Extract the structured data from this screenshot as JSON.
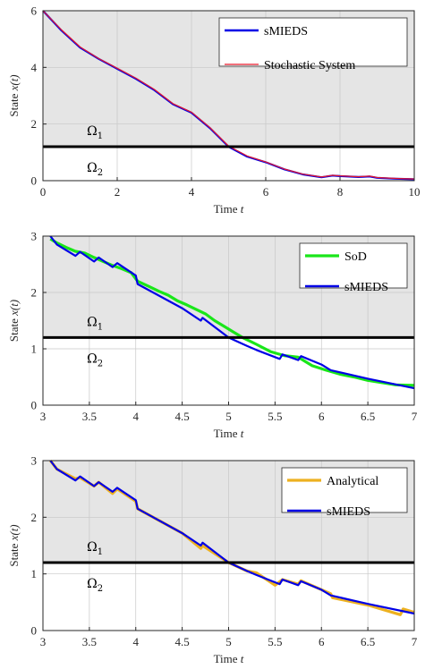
{
  "colors": {
    "smieds": "#0000e6",
    "stochastic": "#e6192b",
    "sod": "#19e619",
    "analytical": "#edb120",
    "threshold": "#000000",
    "region_upper": "#e5e5e5",
    "grid": "#c8c8c8"
  },
  "chart_data": [
    {
      "type": "line",
      "xlabel": "Time t",
      "ylabel": "State x(t)",
      "xlim": [
        0,
        10
      ],
      "ylim": [
        0,
        6
      ],
      "xticks": [
        "0",
        "2",
        "4",
        "6",
        "8",
        "10"
      ],
      "yticks": [
        "0",
        "2",
        "4",
        "6"
      ],
      "grid": true,
      "legend_position": "top-right",
      "threshold": 1.2,
      "regions": [
        "Ω1",
        "Ω2"
      ],
      "series": [
        {
          "name": "sMIEDS",
          "color": "#0000e6",
          "x": [
            0,
            0.5,
            1,
            1.5,
            2,
            2.5,
            3,
            3.5,
            4,
            4.5,
            5,
            5.5,
            6,
            6.5,
            7,
            7.5,
            7.8,
            8,
            8.5,
            8.8,
            9,
            9.5,
            10
          ],
          "y": [
            6.0,
            5.3,
            4.7,
            4.3,
            3.95,
            3.6,
            3.2,
            2.7,
            2.4,
            1.85,
            1.2,
            0.85,
            0.65,
            0.4,
            0.22,
            0.12,
            0.18,
            0.16,
            0.13,
            0.15,
            0.1,
            0.07,
            0.05
          ]
        },
        {
          "name": "Stochastic System",
          "color": "#e6192b",
          "x": [
            0,
            0.5,
            1,
            1.5,
            2,
            2.5,
            3,
            3.5,
            4,
            4.5,
            5,
            5.5,
            6,
            6.5,
            7,
            7.5,
            7.8,
            8,
            8.5,
            8.8,
            9,
            9.5,
            10
          ],
          "y": [
            6.0,
            5.32,
            4.72,
            4.31,
            3.97,
            3.62,
            3.22,
            2.72,
            2.42,
            1.87,
            1.22,
            0.87,
            0.66,
            0.41,
            0.23,
            0.13,
            0.19,
            0.17,
            0.14,
            0.16,
            0.11,
            0.08,
            0.06
          ]
        }
      ]
    },
    {
      "type": "line",
      "xlabel": "Time t",
      "ylabel": "State x(t)",
      "xlim": [
        3,
        7
      ],
      "ylim": [
        0,
        3
      ],
      "xticks": [
        "3",
        "3.5",
        "4",
        "4.5",
        "5",
        "5.5",
        "6",
        "6.5",
        "7"
      ],
      "yticks": [
        "0",
        "1",
        "2",
        "3"
      ],
      "grid": true,
      "legend_position": "top-right",
      "threshold": 1.2,
      "regions": [
        "Ω1",
        "Ω2"
      ],
      "series": [
        {
          "name": "SoD",
          "color": "#19e619",
          "x": [
            3.08,
            3.15,
            3.25,
            3.35,
            3.45,
            3.55,
            3.65,
            3.75,
            3.85,
            3.95,
            4.02,
            4.15,
            4.25,
            4.35,
            4.45,
            4.55,
            4.65,
            4.75,
            4.85,
            4.95,
            5.05,
            5.15,
            5.3,
            5.45,
            5.6,
            5.75,
            5.9,
            6.05,
            6.2,
            6.35,
            6.5,
            6.65,
            6.8,
            7.0
          ],
          "y": [
            2.95,
            2.88,
            2.8,
            2.73,
            2.7,
            2.62,
            2.55,
            2.48,
            2.42,
            2.35,
            2.2,
            2.1,
            2.02,
            1.95,
            1.85,
            1.78,
            1.7,
            1.62,
            1.5,
            1.4,
            1.3,
            1.2,
            1.08,
            0.95,
            0.88,
            0.85,
            0.7,
            0.62,
            0.55,
            0.5,
            0.44,
            0.4,
            0.36,
            0.35
          ]
        },
        {
          "name": "sMIEDS",
          "color": "#0000e6",
          "x": [
            3.08,
            3.15,
            3.35,
            3.4,
            3.55,
            3.6,
            3.75,
            3.8,
            4.0,
            4.02,
            4.5,
            4.7,
            4.72,
            5.0,
            5.2,
            5.3,
            5.55,
            5.58,
            5.75,
            5.78,
            6.0,
            6.1,
            6.5,
            7.0
          ],
          "y": [
            3.0,
            2.85,
            2.65,
            2.72,
            2.55,
            2.62,
            2.45,
            2.52,
            2.3,
            2.15,
            1.72,
            1.5,
            1.55,
            1.2,
            1.05,
            0.98,
            0.82,
            0.9,
            0.8,
            0.87,
            0.72,
            0.62,
            0.47,
            0.3
          ]
        }
      ]
    },
    {
      "type": "line",
      "xlabel": "Time t",
      "ylabel": "State x(t)",
      "xlim": [
        3,
        7
      ],
      "ylim": [
        0,
        3
      ],
      "xticks": [
        "3",
        "3.5",
        "4",
        "4.5",
        "5",
        "5.5",
        "6",
        "6.5",
        "7"
      ],
      "yticks": [
        "0",
        "1",
        "2",
        "3"
      ],
      "grid": true,
      "legend_position": "top-right",
      "threshold": 1.2,
      "regions": [
        "Ω1",
        "Ω2"
      ],
      "series": [
        {
          "name": "Analytical",
          "color": "#edb120",
          "x": [
            3.08,
            3.15,
            3.35,
            3.4,
            3.55,
            3.6,
            3.75,
            3.8,
            4.0,
            4.02,
            4.5,
            4.7,
            4.72,
            5.0,
            5.2,
            5.3,
            5.5,
            5.58,
            5.75,
            5.78,
            6.1,
            6.12,
            6.5,
            6.85,
            6.88,
            7.0
          ],
          "y": [
            3.0,
            2.85,
            2.68,
            2.7,
            2.55,
            2.62,
            2.42,
            2.5,
            2.28,
            2.15,
            1.72,
            1.45,
            1.5,
            1.2,
            1.05,
            1.02,
            0.8,
            0.9,
            0.82,
            0.88,
            0.65,
            0.58,
            0.45,
            0.28,
            0.38,
            0.32
          ]
        },
        {
          "name": "sMIEDS",
          "color": "#0000e6",
          "x": [
            3.08,
            3.15,
            3.35,
            3.4,
            3.55,
            3.6,
            3.75,
            3.8,
            4.0,
            4.02,
            4.5,
            4.7,
            4.72,
            5.0,
            5.2,
            5.3,
            5.55,
            5.58,
            5.75,
            5.78,
            6.0,
            6.1,
            6.5,
            7.0
          ],
          "y": [
            3.0,
            2.85,
            2.65,
            2.72,
            2.55,
            2.62,
            2.45,
            2.52,
            2.3,
            2.15,
            1.72,
            1.5,
            1.55,
            1.2,
            1.05,
            0.98,
            0.82,
            0.9,
            0.8,
            0.87,
            0.72,
            0.62,
            0.47,
            0.3
          ]
        }
      ]
    }
  ]
}
